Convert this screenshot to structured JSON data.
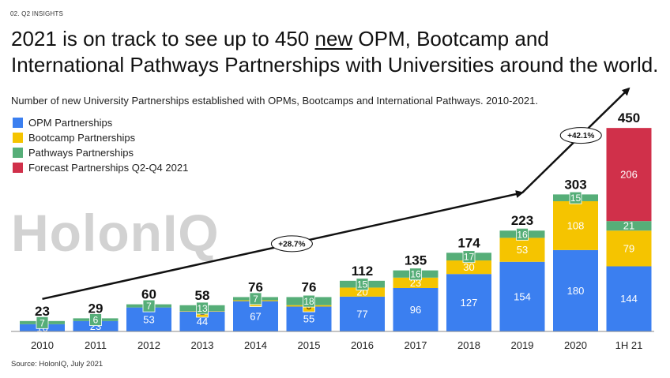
{
  "section": "02. Q2 INSIGHTS",
  "headline": {
    "part1": "2021 is on track to see up to 450 ",
    "emphasis": "new",
    "part2": " OPM, Bootcamp and International Pathways Partnerships with Universities around the world."
  },
  "source": "Source: HolonIQ, July 2021",
  "watermark": "HolonIQ",
  "colors": {
    "opm": "#3b7ff0",
    "bootcamp": "#f5c400",
    "pathways": "#56ae78",
    "forecast": "#d0304a"
  },
  "chart_data": {
    "type": "bar",
    "stacked": true,
    "title": "Number of new University Partnerships established with OPMs, Bootcamps and International Pathways. 2010-2021.",
    "categories": [
      "2010",
      "2011",
      "2012",
      "2013",
      "2014",
      "2015",
      "2016",
      "2017",
      "2018",
      "2019",
      "2020",
      "1H 21"
    ],
    "series": [
      {
        "name": "OPM Partnerships",
        "color": "#3b7ff0",
        "values": [
          16,
          23,
          53,
          44,
          67,
          55,
          77,
          96,
          127,
          154,
          180,
          144
        ]
      },
      {
        "name": "Bootcamp Partnerships",
        "color": "#f5c400",
        "values": [
          0,
          0,
          0,
          1,
          2,
          3,
          20,
          23,
          30,
          53,
          108,
          79
        ]
      },
      {
        "name": "Pathways Partnerships",
        "color": "#56ae78",
        "values": [
          7,
          6,
          7,
          13,
          7,
          18,
          15,
          16,
          17,
          16,
          15,
          21
        ]
      },
      {
        "name": "Forecast Partnerships Q2-Q4 2021",
        "color": "#d0304a",
        "values": [
          0,
          0,
          0,
          0,
          0,
          0,
          0,
          0,
          0,
          0,
          0,
          206
        ]
      }
    ],
    "totals": [
      23,
      29,
      60,
      58,
      76,
      76,
      112,
      135,
      174,
      223,
      303,
      450
    ],
    "legend_position": "top-left",
    "annotations": [
      {
        "label": "+28.7%",
        "segment": "2010 to 2019"
      },
      {
        "label": "+42.1%",
        "segment": "2019 to 1H 21"
      }
    ],
    "ylim": [
      0,
      480
    ]
  }
}
